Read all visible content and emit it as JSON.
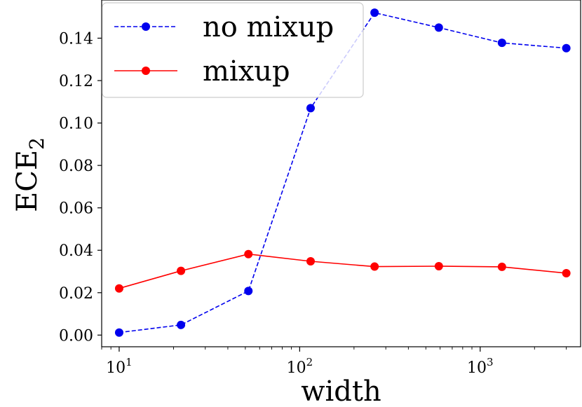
{
  "chart_data": {
    "type": "line",
    "xlabel": "width",
    "ylabel": "ECE",
    "ylabel_subscript": "2",
    "xscale": "log",
    "xlim": [
      8,
      3600
    ],
    "ylim": [
      -0.0055,
      0.158
    ],
    "x": [
      10,
      22,
      52,
      115,
      260,
      590,
      1320,
      3000
    ],
    "yticks": [
      0.0,
      0.02,
      0.04,
      0.06,
      0.08,
      0.1,
      0.12,
      0.14
    ],
    "ytick_labels": [
      "0.00",
      "0.02",
      "0.04",
      "0.06",
      "0.08",
      "0.10",
      "0.12",
      "0.14"
    ],
    "xticks": [
      10,
      100,
      1000
    ],
    "xtick_base": [
      "10",
      "10",
      "10"
    ],
    "xtick_exp": [
      "1",
      "2",
      "3"
    ],
    "grid": false,
    "legend_position": "top-left",
    "series": [
      {
        "name": "no mixup",
        "color": "#0000ee",
        "line_style": "dashed",
        "values": [
          0.0012,
          0.0048,
          0.0208,
          0.107,
          0.152,
          0.145,
          0.1378,
          0.1353
        ]
      },
      {
        "name": "mixup",
        "color": "#ff0000",
        "line_style": "solid",
        "values": [
          0.022,
          0.0303,
          0.0382,
          0.0348,
          0.0323,
          0.0325,
          0.0322,
          0.0292
        ]
      }
    ]
  }
}
